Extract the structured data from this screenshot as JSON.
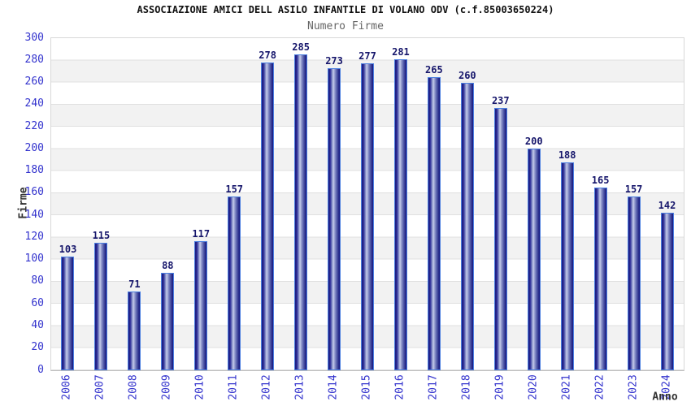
{
  "title": "ASSOCIAZIONE AMICI DELL ASILO INFANTILE DI VOLANO ODV (c.f.85003650224)",
  "subtitle": "Numero Firme",
  "y_axis": {
    "title": "Firme",
    "ticks": [
      0,
      20,
      40,
      60,
      80,
      100,
      120,
      140,
      160,
      180,
      200,
      220,
      240,
      260,
      280,
      300
    ]
  },
  "x_axis": {
    "title": "Anno"
  },
  "chart_data": {
    "type": "bar",
    "title": "ASSOCIAZIONE AMICI DELL ASILO INFANTILE DI VOLANO ODV (c.f.85003650224)",
    "subtitle": "Numero Firme",
    "categories": [
      "2006",
      "2007",
      "2008",
      "2009",
      "2010",
      "2011",
      "2012",
      "2013",
      "2014",
      "2015",
      "2016",
      "2017",
      "2018",
      "2019",
      "2020",
      "2021",
      "2022",
      "2023",
      "2024"
    ],
    "values": [
      103,
      115,
      71,
      88,
      117,
      157,
      278,
      285,
      273,
      277,
      281,
      265,
      260,
      237,
      200,
      188,
      165,
      157,
      142
    ],
    "xlabel": "Anno",
    "ylabel": "Firme",
    "ylim": [
      0,
      300
    ],
    "ytick_step": 20,
    "grid": "horizontal-bands-alternating",
    "legend": "none",
    "bar_labels": "above-bars",
    "x_tick_rotation": -90
  },
  "colors": {
    "title_color": "#111111",
    "subtitle_gray": "#666666",
    "tick_label": "#3232cd",
    "value_label": "#16166b",
    "axis_title": "#333333",
    "band_gray": "#f2f2f2",
    "grid_line": "#e0e0e0",
    "bar_fill_dark": "#1a1a7e",
    "bar_fill_light": "#c4cbe9",
    "bar_border": "#4b7fe0"
  }
}
